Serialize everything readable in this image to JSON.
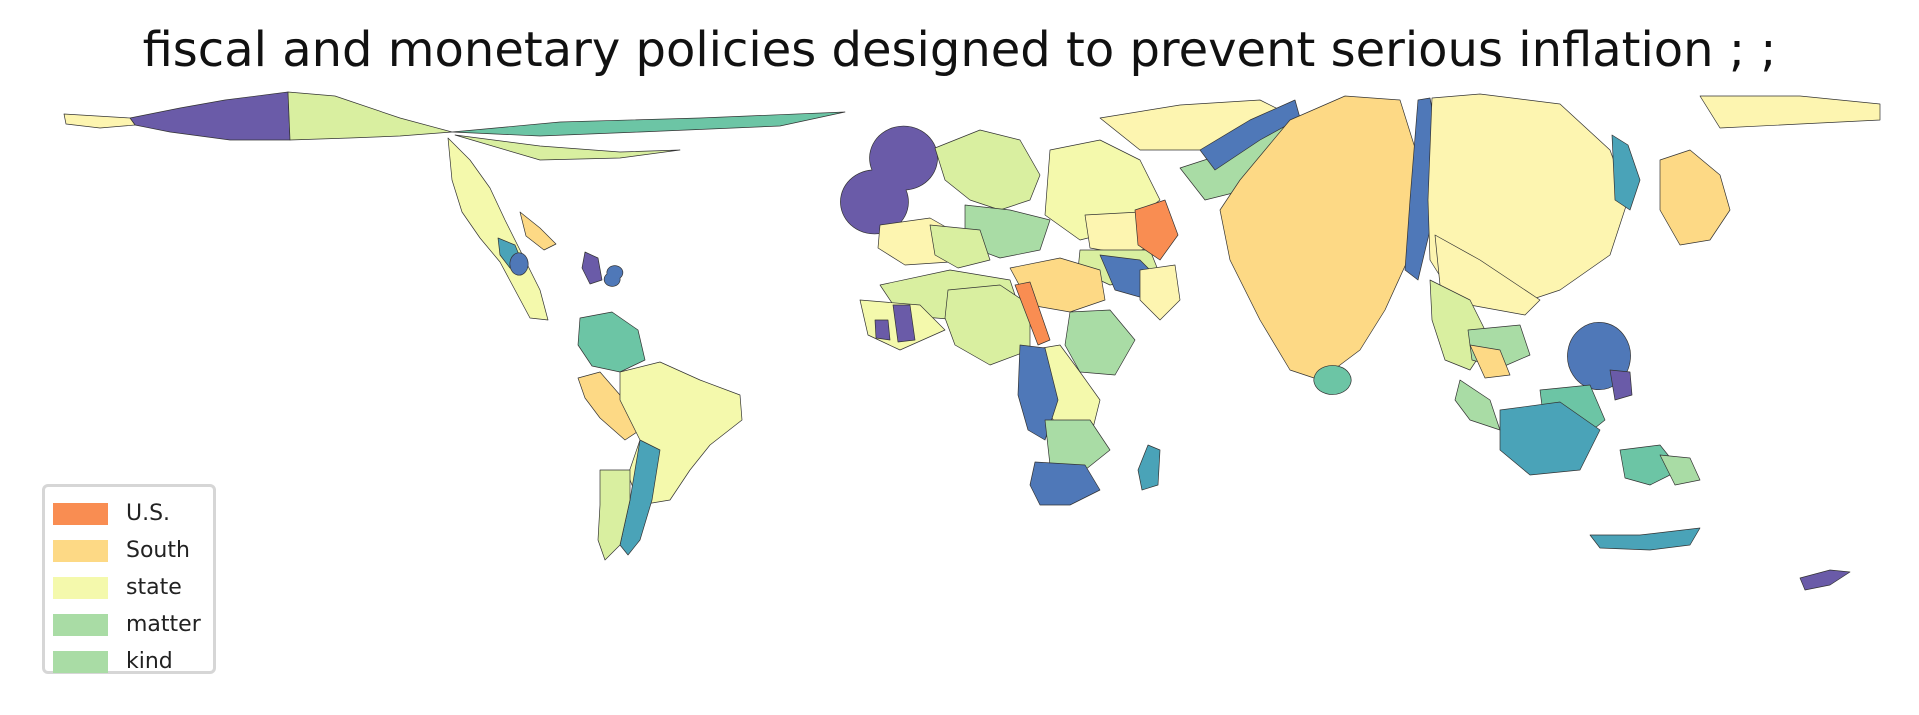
{
  "map": {
    "title": "fiscal and monetary policies designed to prevent serious inflation ; ;",
    "legend": {
      "items": [
        {
          "label": "U.S.",
          "color": "#f98d52"
        },
        {
          "label": "South",
          "color": "#fdd985"
        },
        {
          "label": "state",
          "color": "#f4f9ac"
        },
        {
          "label": "matter",
          "color": "#a9dca5"
        },
        {
          "label": "kind",
          "color": "#a9dca5"
        }
      ]
    },
    "palette": {
      "purple": "#6a5ba8",
      "blue": "#4f78b8",
      "teal": "#4aa3b8",
      "seagreen": "#6cc5a5",
      "lightgreen": "#a9dca5",
      "yellowgreen": "#d9efa0",
      "paleyellow": "#fdf5b0",
      "orange": "#f98d52",
      "peach": "#fdd985"
    }
  }
}
